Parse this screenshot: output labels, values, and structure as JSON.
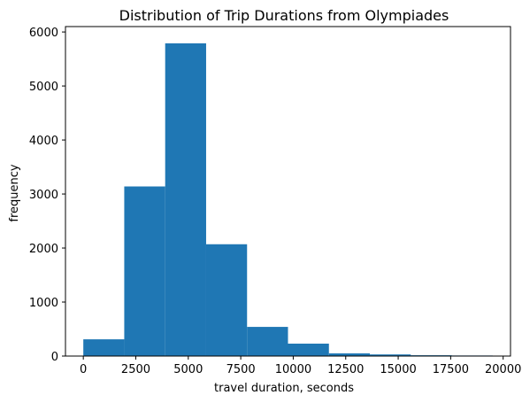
{
  "chart_data": {
    "type": "bar",
    "subtype": "histogram",
    "title": "Distribution of Trip Durations from Olympiades",
    "xlabel": "travel duration, seconds",
    "ylabel": "frequency",
    "xlim": [
      -850,
      20350
    ],
    "ylim": [
      0,
      6100
    ],
    "xticks": [
      0,
      2500,
      5000,
      7500,
      10000,
      12500,
      15000,
      17500,
      20000
    ],
    "yticks": [
      0,
      1000,
      2000,
      3000,
      4000,
      5000,
      6000
    ],
    "bin_edges": [
      0,
      1950,
      3900,
      5850,
      7800,
      9750,
      11700,
      13650,
      15600,
      17550,
      19500
    ],
    "values": [
      310,
      3140,
      5790,
      2070,
      540,
      230,
      50,
      30,
      15,
      10
    ],
    "bar_color": "#1f77b4",
    "grid": false,
    "legend": false
  }
}
